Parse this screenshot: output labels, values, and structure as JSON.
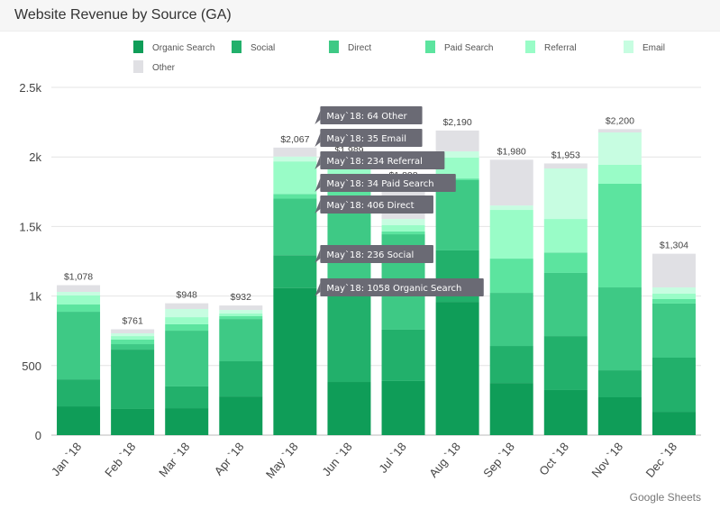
{
  "chart_data": {
    "type": "bar",
    "stacked": true,
    "title": "Website Revenue by Source (GA)",
    "xlabel": "",
    "ylabel": "",
    "ylim": [
      0,
      2500
    ],
    "yticks": [
      {
        "v": 0,
        "label": "0"
      },
      {
        "v": 500,
        "label": "500"
      },
      {
        "v": 1000,
        "label": "1k"
      },
      {
        "v": 1500,
        "label": "1.5k"
      },
      {
        "v": 2000,
        "label": "2k"
      },
      {
        "v": 2500,
        "label": "2.5k"
      }
    ],
    "grid": true,
    "legend_position": "top",
    "categories": [
      "Jan `18",
      "Feb `18",
      "Mar `18",
      "Apr `18",
      "May `18",
      "Jun `18",
      "Jul `18",
      "Aug `18",
      "Sep `18",
      "Oct `18",
      "Nov `18",
      "Dec `18"
    ],
    "totals": [
      "$1,078",
      "$761",
      "$948",
      "$932",
      "$2,067",
      "$1,989",
      "$1,808",
      "$2,190",
      "$1,980",
      "$1,953",
      "$2,200",
      "$1,304"
    ],
    "series": [
      {
        "name": "Organic Search",
        "color": "#0f9d58",
        "values": [
          207,
          188,
          194,
          278,
          1058,
          382,
          389,
          958,
          375,
          324,
          272,
          168
        ]
      },
      {
        "name": "Social",
        "color": "#22b06b",
        "values": [
          194,
          427,
          156,
          253,
          236,
          740,
          369,
          370,
          266,
          388,
          194,
          389
        ]
      },
      {
        "name": "Direct",
        "color": "#3ec985",
        "values": [
          486,
          39,
          401,
          304,
          406,
          560,
          686,
          505,
          382,
          454,
          596,
          389
        ]
      },
      {
        "name": "Paid Search",
        "color": "#5ce49f",
        "values": [
          52,
          33,
          46,
          20,
          34,
          120,
          20,
          12,
          246,
          147,
          745,
          32
        ]
      },
      {
        "name": "Referral",
        "color": "#99fcc7",
        "values": [
          65,
          25,
          51,
          19,
          234,
          110,
          45,
          150,
          350,
          241,
          136,
          39
        ]
      },
      {
        "name": "Email",
        "color": "#c7fde1",
        "values": [
          26,
          20,
          59,
          26,
          35,
          30,
          45,
          45,
          32,
          363,
          233,
          45
        ]
      },
      {
        "name": "Other",
        "color": "#e0e0e4",
        "values": [
          48,
          29,
          41,
          32,
          64,
          47,
          254,
          150,
          329,
          36,
          24,
          242
        ]
      }
    ],
    "tooltips": [
      "May`18: 64 Other",
      "May`18: 35 Email",
      "May`18: 234 Referral",
      "May`18: 34 Paid Search",
      "May`18: 406 Direct",
      "May`18: 236 Social",
      "May`18: 1058 Organic Search"
    ]
  },
  "footer": "Google Sheets"
}
